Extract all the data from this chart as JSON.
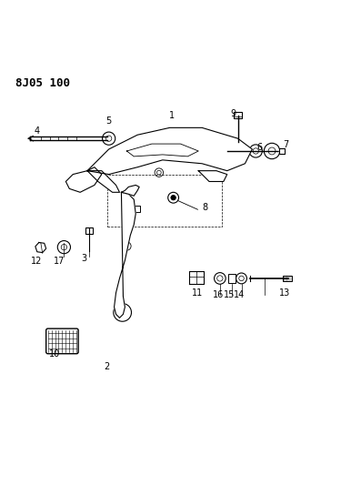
{
  "title": "8J05 100",
  "bg_color": "#ffffff",
  "line_color": "#000000",
  "fig_width": 3.97,
  "fig_height": 5.33,
  "dpi": 100
}
